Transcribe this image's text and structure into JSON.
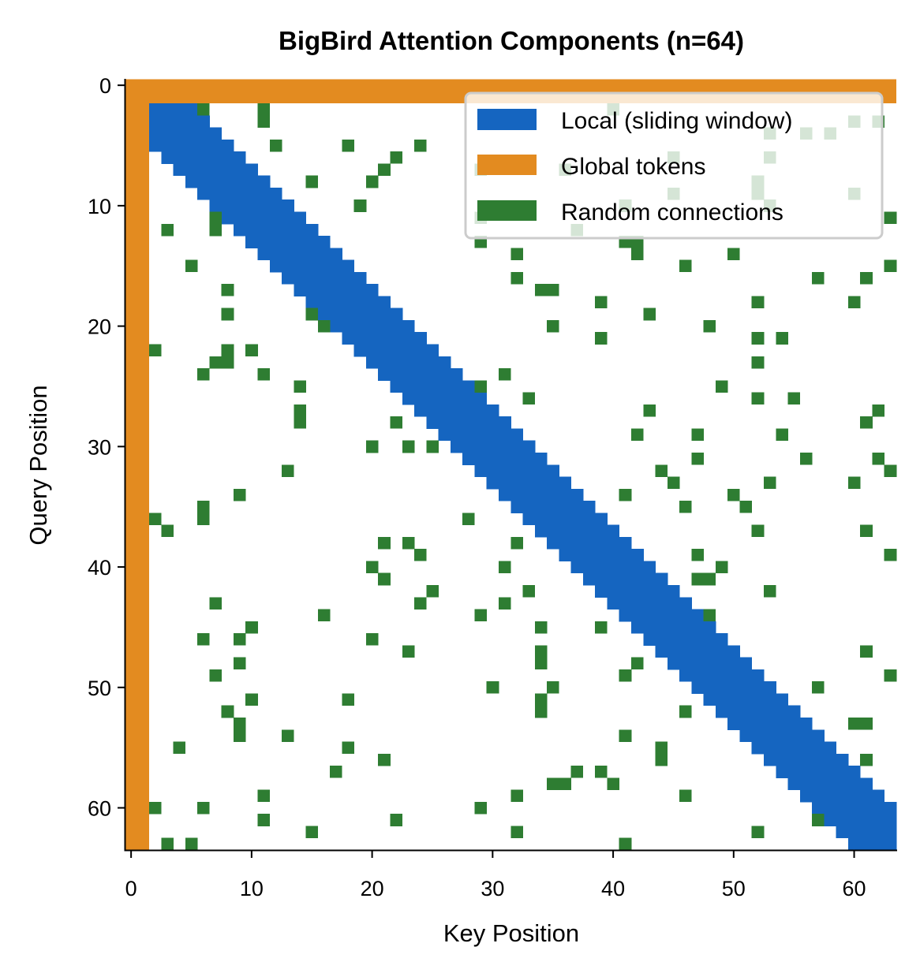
{
  "chart_data": {
    "type": "heatmap",
    "title": "BigBird Attention Components (n=64)",
    "xlabel": "Key Position",
    "ylabel": "Query Position",
    "n": 64,
    "xlim": [
      0,
      63
    ],
    "ylim": [
      63,
      0
    ],
    "x_ticks": [
      "0",
      "10",
      "20",
      "30",
      "40",
      "50",
      "60"
    ],
    "y_ticks": [
      "0",
      "10",
      "20",
      "30",
      "40",
      "50",
      "60"
    ],
    "grid": false,
    "legend_position": "top-right",
    "legend": [
      {
        "label": "Local (sliding window)",
        "color": "#1565c0"
      },
      {
        "label": "Global tokens",
        "color": "#e38b20"
      },
      {
        "label": "Random connections",
        "color": "#2e7d32"
      }
    ],
    "local_window_radius": 3,
    "global_tokens": [
      0,
      1
    ],
    "random_connections": [
      [
        2,
        6
      ],
      [
        2,
        11
      ],
      [
        2,
        40
      ],
      [
        3,
        11
      ],
      [
        3,
        60
      ],
      [
        3,
        62
      ],
      [
        4,
        53
      ],
      [
        4,
        56
      ],
      [
        4,
        58
      ],
      [
        5,
        12
      ],
      [
        5,
        18
      ],
      [
        5,
        24
      ],
      [
        6,
        22
      ],
      [
        6,
        45
      ],
      [
        6,
        53
      ],
      [
        7,
        21
      ],
      [
        7,
        29
      ],
      [
        7,
        36
      ],
      [
        8,
        15
      ],
      [
        8,
        20
      ],
      [
        8,
        52
      ],
      [
        9,
        45
      ],
      [
        9,
        52
      ],
      [
        9,
        60
      ],
      [
        10,
        19
      ],
      [
        10,
        41
      ],
      [
        10,
        53
      ],
      [
        11,
        7
      ],
      [
        11,
        29
      ],
      [
        11,
        63
      ],
      [
        12,
        3
      ],
      [
        12,
        7
      ],
      [
        12,
        37
      ],
      [
        13,
        29
      ],
      [
        13,
        41
      ],
      [
        13,
        42
      ],
      [
        14,
        32
      ],
      [
        14,
        42
      ],
      [
        14,
        50
      ],
      [
        15,
        5
      ],
      [
        15,
        46
      ],
      [
        15,
        63
      ],
      [
        16,
        32
      ],
      [
        16,
        57
      ],
      [
        16,
        61
      ],
      [
        17,
        8
      ],
      [
        17,
        34
      ],
      [
        17,
        35
      ],
      [
        18,
        39
      ],
      [
        18,
        52
      ],
      [
        18,
        60
      ],
      [
        19,
        8
      ],
      [
        19,
        15
      ],
      [
        19,
        43
      ],
      [
        20,
        16
      ],
      [
        20,
        35
      ],
      [
        20,
        48
      ],
      [
        21,
        39
      ],
      [
        21,
        52
      ],
      [
        21,
        54
      ],
      [
        22,
        2
      ],
      [
        22,
        8
      ],
      [
        22,
        10
      ],
      [
        23,
        7
      ],
      [
        23,
        8
      ],
      [
        23,
        52
      ],
      [
        24,
        6
      ],
      [
        24,
        11
      ],
      [
        24,
        31
      ],
      [
        25,
        14
      ],
      [
        25,
        29
      ],
      [
        25,
        49
      ],
      [
        26,
        33
      ],
      [
        26,
        52
      ],
      [
        26,
        55
      ],
      [
        27,
        14
      ],
      [
        27,
        43
      ],
      [
        27,
        62
      ],
      [
        28,
        14
      ],
      [
        28,
        22
      ],
      [
        28,
        61
      ],
      [
        29,
        42
      ],
      [
        29,
        47
      ],
      [
        29,
        54
      ],
      [
        30,
        20
      ],
      [
        30,
        23
      ],
      [
        30,
        25
      ],
      [
        31,
        47
      ],
      [
        31,
        56
      ],
      [
        31,
        62
      ],
      [
        32,
        13
      ],
      [
        32,
        44
      ],
      [
        32,
        63
      ],
      [
        33,
        45
      ],
      [
        33,
        53
      ],
      [
        33,
        60
      ],
      [
        34,
        9
      ],
      [
        34,
        41
      ],
      [
        34,
        50
      ],
      [
        35,
        6
      ],
      [
        35,
        46
      ],
      [
        35,
        51
      ],
      [
        36,
        2
      ],
      [
        36,
        6
      ],
      [
        36,
        28
      ],
      [
        37,
        3
      ],
      [
        37,
        52
      ],
      [
        37,
        61
      ],
      [
        38,
        21
      ],
      [
        38,
        23
      ],
      [
        38,
        32
      ],
      [
        39,
        24
      ],
      [
        39,
        47
      ],
      [
        39,
        63
      ],
      [
        40,
        20
      ],
      [
        40,
        31
      ],
      [
        40,
        49
      ],
      [
        41,
        21
      ],
      [
        41,
        47
      ],
      [
        41,
        48
      ],
      [
        42,
        25
      ],
      [
        42,
        33
      ],
      [
        42,
        53
      ],
      [
        43,
        7
      ],
      [
        43,
        24
      ],
      [
        43,
        31
      ],
      [
        44,
        16
      ],
      [
        44,
        29
      ],
      [
        44,
        48
      ],
      [
        45,
        10
      ],
      [
        45,
        34
      ],
      [
        45,
        39
      ],
      [
        46,
        6
      ],
      [
        46,
        9
      ],
      [
        46,
        20
      ],
      [
        47,
        23
      ],
      [
        47,
        34
      ],
      [
        47,
        61
      ],
      [
        48,
        9
      ],
      [
        48,
        34
      ],
      [
        48,
        42
      ],
      [
        49,
        7
      ],
      [
        49,
        41
      ],
      [
        49,
        63
      ],
      [
        50,
        30
      ],
      [
        50,
        35
      ],
      [
        50,
        57
      ],
      [
        51,
        10
      ],
      [
        51,
        18
      ],
      [
        51,
        34
      ],
      [
        52,
        8
      ],
      [
        52,
        34
      ],
      [
        52,
        46
      ],
      [
        53,
        9
      ],
      [
        53,
        60
      ],
      [
        53,
        61
      ],
      [
        54,
        9
      ],
      [
        54,
        13
      ],
      [
        54,
        41
      ],
      [
        55,
        4
      ],
      [
        55,
        18
      ],
      [
        55,
        44
      ],
      [
        56,
        21
      ],
      [
        56,
        44
      ],
      [
        56,
        61
      ],
      [
        57,
        17
      ],
      [
        57,
        37
      ],
      [
        57,
        39
      ],
      [
        58,
        35
      ],
      [
        58,
        36
      ],
      [
        58,
        40
      ],
      [
        59,
        11
      ],
      [
        59,
        32
      ],
      [
        59,
        46
      ],
      [
        60,
        2
      ],
      [
        60,
        6
      ],
      [
        60,
        29
      ],
      [
        61,
        11
      ],
      [
        61,
        22
      ],
      [
        61,
        57
      ],
      [
        62,
        15
      ],
      [
        62,
        32
      ],
      [
        62,
        52
      ],
      [
        63,
        3
      ],
      [
        63,
        5
      ],
      [
        63,
        41
      ]
    ]
  }
}
